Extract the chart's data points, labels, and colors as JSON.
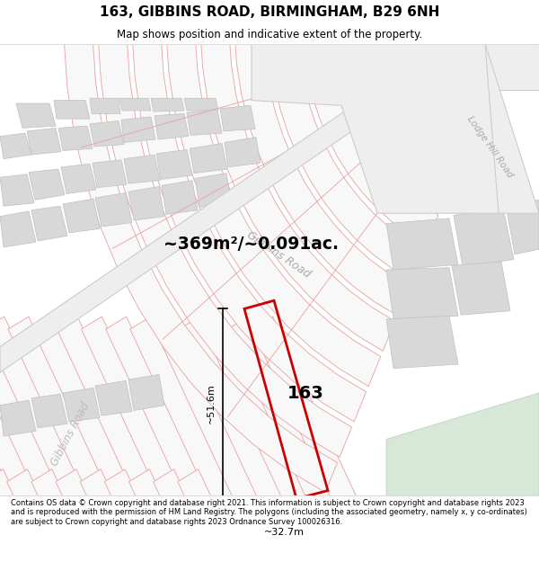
{
  "title": "163, GIBBINS ROAD, BIRMINGHAM, B29 6NH",
  "subtitle": "Map shows position and indicative extent of the property.",
  "footer": "Contains OS data © Crown copyright and database right 2021. This information is subject to Crown copyright and database rights 2023 and is reproduced with the permission of HM Land Registry. The polygons (including the associated geometry, namely x, y co-ordinates) are subject to Crown copyright and database rights 2023 Ordnance Survey 100026316.",
  "area_label": "~369m²/~0.091ac.",
  "plot_number": "163",
  "dim_width": "~32.7m",
  "dim_height": "~51.6m",
  "road_label_gibbins_diag": "Gibbins Road",
  "road_label_gibbins_left": "Gibbins Road",
  "road_label_lodge": "Lodge Hill Road",
  "bg_color": "#ffffff",
  "map_bg": "#ffffff",
  "plot_outline_color": "#e8b0b0",
  "plot_fill_color": "#ffffff",
  "gray_block_color": "#d8d8d8",
  "gray_block_stroke": "#c0c0c0",
  "road_band_color": "#e8e8e8",
  "road_band_stroke": "#cccccc",
  "red_line_color": "#e8a0a0",
  "highlight_color": "#cc0000",
  "green_area_color": "#d8e8d8"
}
